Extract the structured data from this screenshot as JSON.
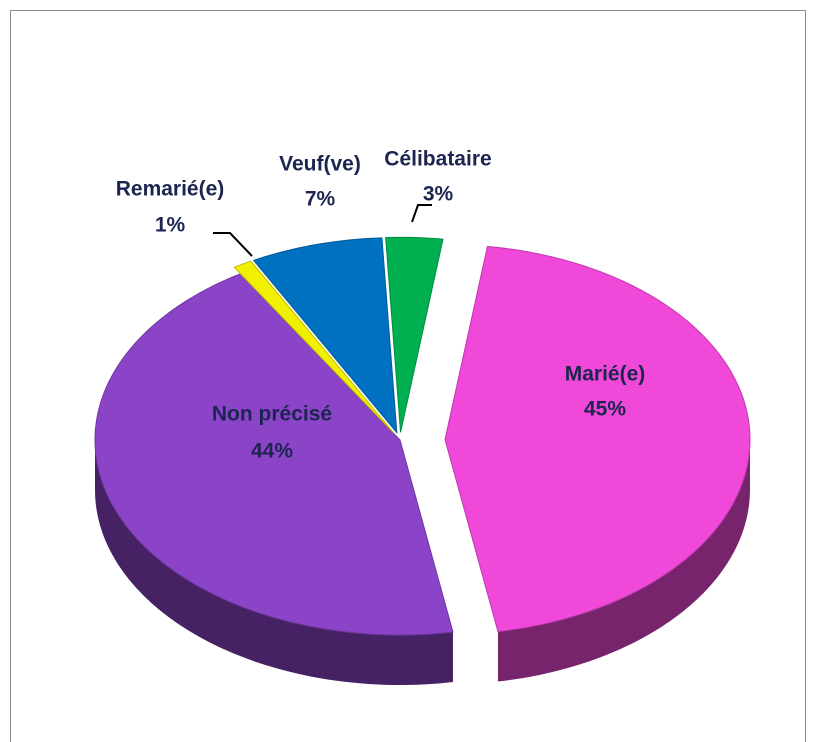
{
  "chart_data": {
    "type": "pie",
    "categories": [
      "Marié(e)",
      "Non précisé",
      "Remarié(e)",
      "Veuf(ve)",
      "Célibataire"
    ],
    "values": [
      45,
      44,
      1,
      7,
      3
    ],
    "value_labels": [
      "45%",
      "44%",
      "1%",
      "7%",
      "3%"
    ],
    "colors": [
      "#f048d8",
      "#8b44c8",
      "#f0f000",
      "#0070c0",
      "#00b050"
    ]
  }
}
